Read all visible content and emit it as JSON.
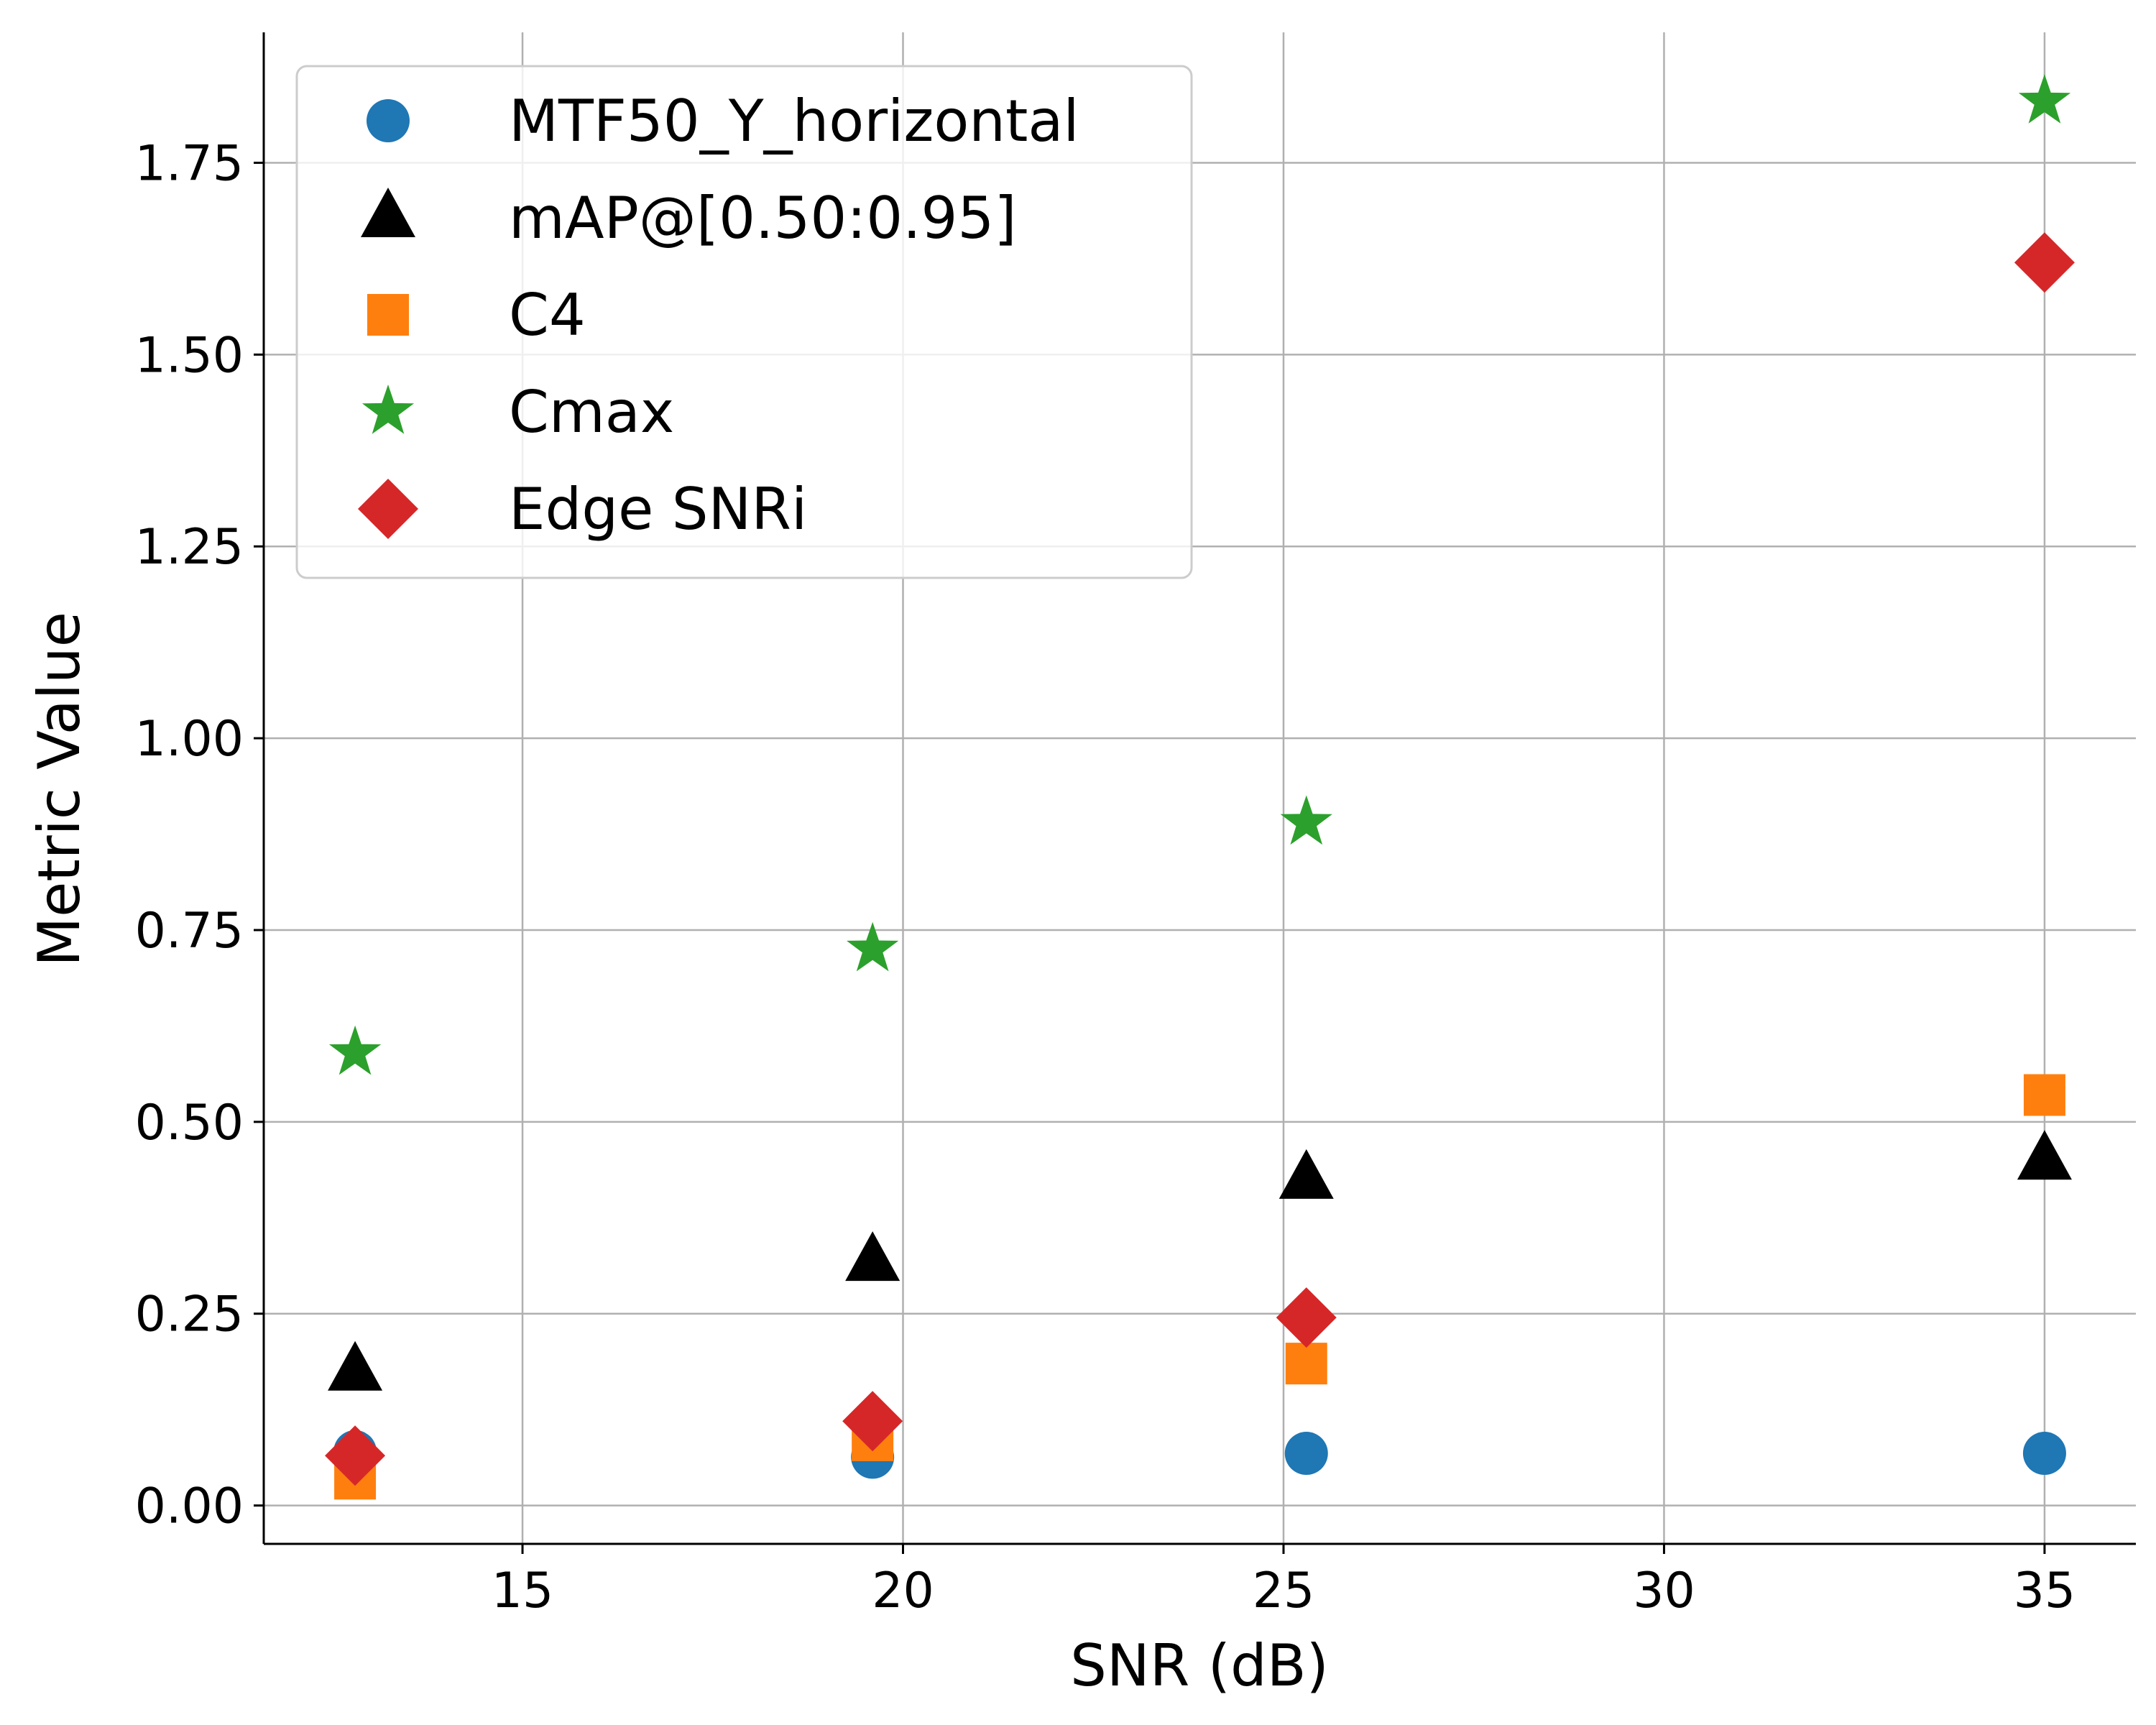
{
  "chart_data": {
    "type": "scatter",
    "xlabel": "SNR (dB)",
    "ylabel": "Metric Value",
    "xlim": [
      11.6,
      36.2
    ],
    "ylim": [
      -0.05,
      1.92
    ],
    "xticks": [
      15,
      20,
      25,
      30,
      35
    ],
    "yticks": [
      0.0,
      0.25,
      0.5,
      0.75,
      1.0,
      1.25,
      1.5,
      1.75
    ],
    "xtick_labels": [
      "15",
      "20",
      "25",
      "30",
      "35"
    ],
    "ytick_labels": [
      "0.00",
      "0.25",
      "0.50",
      "0.75",
      "1.00",
      "1.25",
      "1.50",
      "1.75"
    ],
    "grid": true,
    "legend_position": "upper-left",
    "series": [
      {
        "name": "MTF50_Y_horizontal",
        "marker": "circle",
        "color": "#1f77b4",
        "x": [
          12.8,
          19.6,
          25.3,
          35.0
        ],
        "y": [
          0.07,
          0.063,
          0.068,
          0.068
        ]
      },
      {
        "name": "mAP@[0.50:0.95]",
        "marker": "triangle",
        "color": "#000000",
        "x": [
          12.8,
          19.6,
          25.3,
          35.0
        ],
        "y": [
          0.175,
          0.318,
          0.425,
          0.45
        ]
      },
      {
        "name": "C4",
        "marker": "square",
        "color": "#ff7f0e",
        "x": [
          12.8,
          19.6,
          25.3,
          35.0
        ],
        "y": [
          0.035,
          0.085,
          0.185,
          0.535
        ]
      },
      {
        "name": "Cmax",
        "marker": "star",
        "color": "#2ca02c",
        "x": [
          12.8,
          19.6,
          25.3,
          35.0
        ],
        "y": [
          0.59,
          0.725,
          0.89,
          1.83
        ]
      },
      {
        "name": "Edge SNRi",
        "marker": "diamond",
        "color": "#d62728",
        "x": [
          12.8,
          19.6,
          25.3,
          35.0
        ],
        "y": [
          0.065,
          0.11,
          0.245,
          1.62
        ]
      }
    ]
  }
}
